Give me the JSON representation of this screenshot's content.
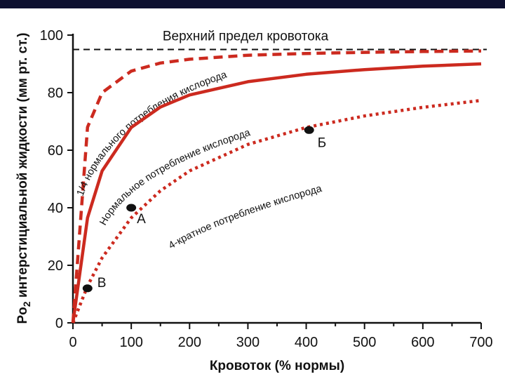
{
  "chart_data": {
    "type": "line",
    "title": "",
    "xlabel": "Кровоток (% нормы)",
    "ylabel_main": "Po",
    "ylabel_sub": "2",
    "ylabel_rest": " интерстициальной жидкости (мм рт. ст.)",
    "xlim": [
      0,
      700
    ],
    "ylim": [
      0,
      100
    ],
    "x_ticks": [
      0,
      100,
      200,
      300,
      400,
      500,
      600,
      700
    ],
    "y_ticks": [
      0,
      20,
      40,
      60,
      80,
      100
    ],
    "x_tick_labels": [
      "0",
      "100",
      "200",
      "300",
      "400",
      "500",
      "600",
      "700"
    ],
    "y_tick_labels": [
      "0",
      "20",
      "40",
      "60",
      "80",
      "100"
    ],
    "ceiling": {
      "value": 95,
      "label": "Верхний предел кровотока"
    },
    "series": [
      {
        "name": "1/4 нормального потребления кислорода",
        "style": "dashed",
        "color": "#cc2a1f",
        "k": 10,
        "x": [
          0,
          25,
          50,
          100,
          150,
          200,
          300,
          400,
          500,
          600,
          700
        ],
        "y": [
          0,
          68,
          80,
          87.5,
          90.3,
          91.6,
          93.0,
          93.6,
          94.0,
          94.3,
          94.5
        ]
      },
      {
        "name": "Нормальное потребление кислорода",
        "style": "solid",
        "color": "#cc2a1f",
        "k": 40,
        "x": [
          0,
          25,
          50,
          100,
          150,
          200,
          300,
          400,
          500,
          600,
          700
        ],
        "y": [
          0,
          36.5,
          52.8,
          67.9,
          75.0,
          79.2,
          83.8,
          86.4,
          88.0,
          89.2,
          90.0
        ]
      },
      {
        "name": "4-кратное потребление кислорода",
        "style": "dotted",
        "color": "#cc2a1f",
        "k": 160,
        "x": [
          0,
          25,
          50,
          100,
          150,
          200,
          300,
          400,
          500,
          600,
          700
        ],
        "y": [
          0,
          12.8,
          22.6,
          36.5,
          45.9,
          52.8,
          62.0,
          67.9,
          71.9,
          74.9,
          77.3
        ]
      }
    ],
    "points": [
      {
        "label": "А",
        "x": 100,
        "y": 40
      },
      {
        "label": "Б",
        "x": 405,
        "y": 67
      },
      {
        "label": "В",
        "x": 25,
        "y": 12
      }
    ]
  }
}
